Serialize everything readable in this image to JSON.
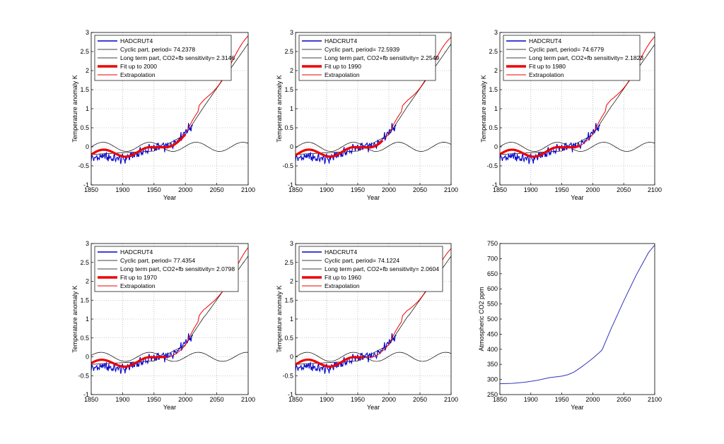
{
  "colors": {
    "observed": "#0000cc",
    "thin": "#000000",
    "fit": "#ee0000",
    "extrapolation": "#ee0000",
    "co2": "#3333bb"
  },
  "chart_data": [
    {
      "type": "line",
      "xlabel": "Year",
      "ylabel": "Temperature anomaly K",
      "xlim": [
        1850,
        2100
      ],
      "ylim": [
        -1,
        3
      ],
      "xticks": [
        "1850",
        "1900",
        "1950",
        "2000",
        "2050",
        "2100"
      ],
      "yticks": [
        "-1",
        "-0.5",
        "0",
        "0.5",
        "1",
        "1.5",
        "2",
        "2.5",
        "3"
      ],
      "grid": true,
      "legend_position": "top-left",
      "legend": [
        "HADCRUT4",
        "Cyclic part, period= 74.2378",
        "Long term part, CO2+fb sensitivity= 2.3146",
        "Fit up to 2000",
        "Extrapolation"
      ],
      "period": 74.2378,
      "fit_end": 2000
    },
    {
      "type": "line",
      "xlabel": "Year",
      "ylabel": "Temperature anomaly K",
      "xlim": [
        1850,
        2100
      ],
      "ylim": [
        -1,
        3
      ],
      "xticks": [
        "1850",
        "1900",
        "1950",
        "2000",
        "2050",
        "2100"
      ],
      "yticks": [
        "-1",
        "-0.5",
        "0",
        "0.5",
        "1",
        "1.5",
        "2",
        "2.5",
        "3"
      ],
      "grid": true,
      "legend_position": "top-left",
      "legend": [
        "HADCRUT4",
        "Cyclic part, period= 72.5939",
        "Long term part, CO2+fb sensitivity= 2.2549",
        "Fit up to 1990",
        "Extrapolation"
      ],
      "period": 72.5939,
      "fit_end": 1990
    },
    {
      "type": "line",
      "xlabel": "Year",
      "ylabel": "Temperature anomaly K",
      "xlim": [
        1850,
        2100
      ],
      "ylim": [
        -1,
        3
      ],
      "xticks": [
        "1850",
        "1900",
        "1950",
        "2000",
        "2050",
        "2100"
      ],
      "yticks": [
        "-1",
        "-0.5",
        "0",
        "0.5",
        "1",
        "1.5",
        "2",
        "2.5",
        "3"
      ],
      "grid": true,
      "legend_position": "top-left",
      "legend": [
        "HADCRUT4",
        "Cyclic part, period= 74.6779",
        "Long term part, CO2+fb sensitivity= 2.1823",
        "Fit up to 1980",
        "Extrapolation"
      ],
      "period": 74.6779,
      "fit_end": 1980
    },
    {
      "type": "line",
      "xlabel": "Year",
      "ylabel": "Temperature anomaly K",
      "xlim": [
        1850,
        2100
      ],
      "ylim": [
        -1,
        3
      ],
      "xticks": [
        "1850",
        "1900",
        "1950",
        "2000",
        "2050",
        "2100"
      ],
      "yticks": [
        "-1",
        "-0.5",
        "0",
        "0.5",
        "1",
        "1.5",
        "2",
        "2.5",
        "3"
      ],
      "grid": true,
      "legend_position": "top-left",
      "legend": [
        "HADCRUT4",
        "Cyclic part, period= 77.4354",
        "Long term part, CO2+fb sensitivity= 2.0798",
        "Fit up to 1970",
        "Extrapolation"
      ],
      "period": 77.4354,
      "fit_end": 1970
    },
    {
      "type": "line",
      "xlabel": "Year",
      "ylabel": "Temperature anomaly K",
      "xlim": [
        1850,
        2100
      ],
      "ylim": [
        -1,
        3
      ],
      "xticks": [
        "1850",
        "1900",
        "1950",
        "2000",
        "2050",
        "2100"
      ],
      "yticks": [
        "-1",
        "-0.5",
        "0",
        "0.5",
        "1",
        "1.5",
        "2",
        "2.5",
        "3"
      ],
      "grid": true,
      "legend_position": "top-left",
      "legend": [
        "HADCRUT4",
        "Cyclic part, period= 74.1224",
        "Long term part, CO2+fb sensitivity= 2.0604",
        "Fit up to 1960",
        "Extrapolation"
      ],
      "period": 74.1224,
      "fit_end": 1960
    },
    {
      "type": "line",
      "xlabel": "Year",
      "ylabel": "Atmospheric CO2 ppm",
      "xlim": [
        1850,
        2100
      ],
      "ylim": [
        250,
        750
      ],
      "xticks": [
        "1850",
        "1900",
        "1950",
        "2000",
        "2050",
        "2100"
      ],
      "yticks": [
        "250",
        "300",
        "350",
        "400",
        "450",
        "500",
        "550",
        "600",
        "650",
        "700",
        "750"
      ],
      "grid": false,
      "series": [
        {
          "x": [
            1850,
            1870,
            1890,
            1910,
            1930,
            1950,
            1960,
            1970,
            1980,
            1990,
            2000,
            2010,
            2015,
            2030,
            2050,
            2070,
            2090,
            2100
          ],
          "y": [
            286,
            287,
            291,
            297,
            306,
            311,
            316,
            325,
            339,
            354,
            370,
            388,
            398,
            470,
            560,
            645,
            720,
            745
          ]
        }
      ]
    }
  ]
}
